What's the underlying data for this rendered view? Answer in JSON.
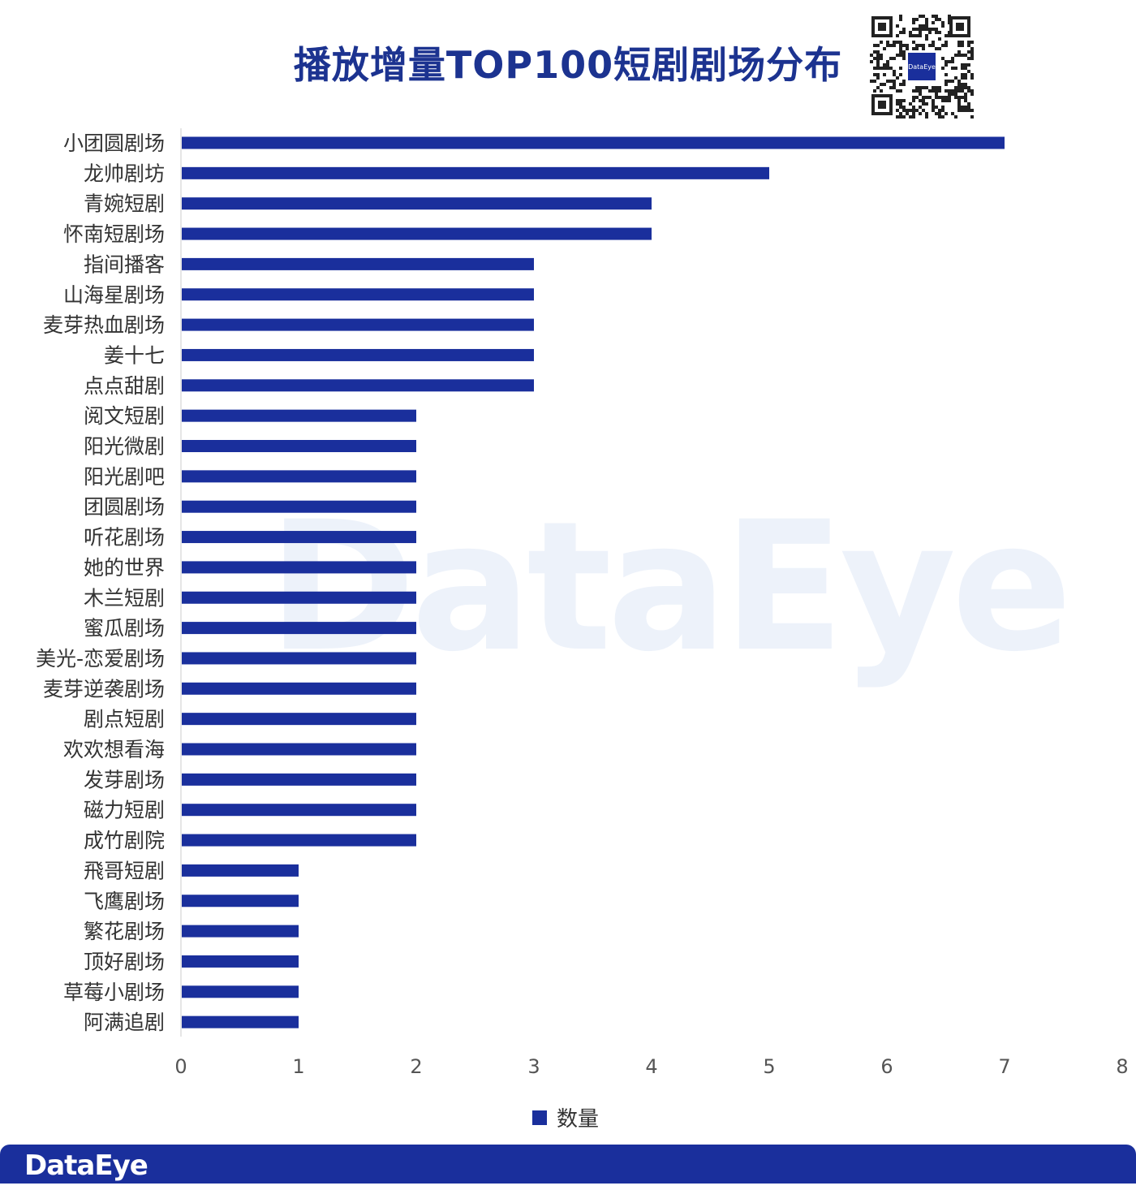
{
  "title": "播放增量TOP100短剧剧场分布",
  "watermark": "DataEye",
  "qr_logo_text": "DataEye",
  "footer_brand": "DataEye",
  "colors": {
    "bar": "#1a2f9c",
    "title": "#1c3390",
    "footer": "#1a2f9c"
  },
  "chart_data": {
    "type": "bar",
    "orientation": "horizontal",
    "categories": [
      "小团圆剧场",
      "龙帅剧坊",
      "青婉短剧",
      "怀南短剧场",
      "指间播客",
      "山海星剧场",
      "麦芽热血剧场",
      "姜十七",
      "点点甜剧",
      "阅文短剧",
      "阳光微剧",
      "阳光剧吧",
      "团圆剧场",
      "听花剧场",
      "她的世界",
      "木兰短剧",
      "蜜瓜剧场",
      "美光-恋爱剧场",
      "麦芽逆袭剧场",
      "剧点短剧",
      "欢欢想看海",
      "发芽剧场",
      "磁力短剧",
      "成竹剧院",
      "飛哥短剧",
      "飞鹰剧场",
      "繁花剧场",
      "顶好剧场",
      "草莓小剧场",
      "阿满追剧"
    ],
    "series": [
      {
        "name": "数量",
        "values": [
          7,
          5,
          4,
          4,
          3,
          3,
          3,
          3,
          3,
          2,
          2,
          2,
          2,
          2,
          2,
          2,
          2,
          2,
          2,
          2,
          2,
          2,
          2,
          2,
          1,
          1,
          1,
          1,
          1,
          1
        ]
      }
    ],
    "xlim": [
      0,
      8
    ],
    "xticks": [
      "0",
      "1",
      "2",
      "3",
      "4",
      "5",
      "6",
      "7",
      "8"
    ],
    "grid": false,
    "legend": "bottom"
  }
}
